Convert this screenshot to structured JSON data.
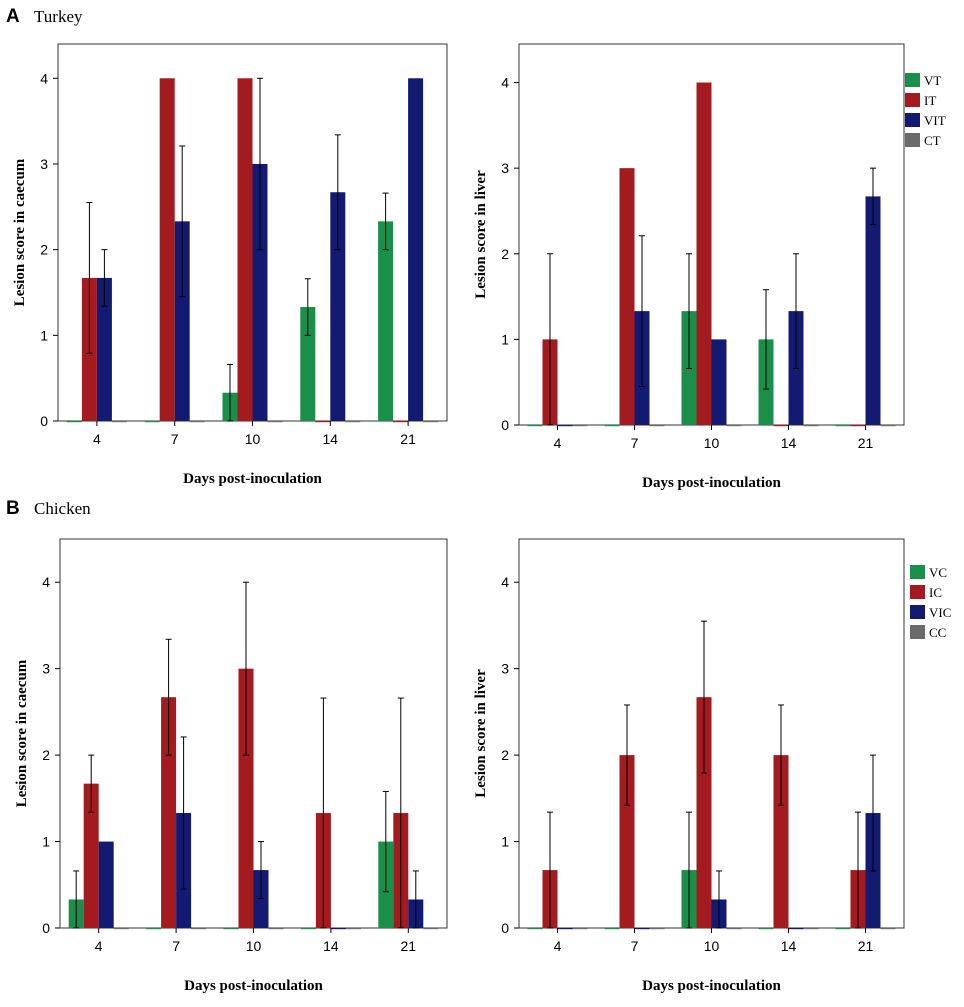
{
  "colors": {
    "green": "#1a8f4a",
    "red": "#a31a1f",
    "navy": "#131a72",
    "gray": "#6b6b6b"
  },
  "panels": [
    {
      "letter": "A",
      "title": "Turkey"
    },
    {
      "letter": "B",
      "title": "Chicken"
    }
  ],
  "chart_data": [
    {
      "type": "bar",
      "panel": "A",
      "categories": [
        "4",
        "7",
        "10",
        "14",
        "21"
      ],
      "xlabel": "Days post-inoculation",
      "ylabel": "Lesion score in caecum",
      "ylim": [
        0,
        4.4
      ],
      "yticks": [
        0,
        1,
        2,
        3,
        4
      ],
      "legend": [],
      "series": [
        {
          "name": "VT",
          "color": "green",
          "values": [
            0,
            0,
            0.33,
            1.33,
            2.33
          ],
          "err": [
            0,
            0,
            0.33,
            0.33,
            0.33
          ]
        },
        {
          "name": "IT",
          "color": "red",
          "values": [
            1.67,
            4,
            4,
            0,
            0
          ],
          "err": [
            0.88,
            0,
            0,
            0,
            0
          ]
        },
        {
          "name": "VIT",
          "color": "navy",
          "values": [
            1.67,
            2.33,
            3,
            2.67,
            4
          ],
          "err": [
            0.33,
            0.88,
            1,
            0.67,
            0
          ]
        },
        {
          "name": "CT",
          "color": "gray",
          "values": [
            0,
            0,
            0,
            0,
            0
          ],
          "err": [
            0,
            0,
            0,
            0,
            0
          ]
        }
      ]
    },
    {
      "type": "bar",
      "panel": "A",
      "categories": [
        "4",
        "7",
        "10",
        "14",
        "21"
      ],
      "xlabel": "Days post-inoculation",
      "ylabel": "Lesion score in liver",
      "ylim": [
        0,
        4.45
      ],
      "yticks": [
        0,
        1,
        2,
        3,
        4
      ],
      "legend": [
        "VT",
        "IT",
        "VIT",
        "CT"
      ],
      "series": [
        {
          "name": "VT",
          "color": "green",
          "values": [
            0,
            0,
            1.33,
            1,
            0
          ],
          "err": [
            0,
            0,
            0.67,
            0.58,
            0
          ]
        },
        {
          "name": "IT",
          "color": "red",
          "values": [
            1,
            3,
            4,
            0,
            0
          ],
          "err": [
            1,
            0,
            0,
            0,
            0
          ]
        },
        {
          "name": "VIT",
          "color": "navy",
          "values": [
            0,
            1.33,
            1,
            1.33,
            2.67
          ],
          "err": [
            0,
            0.88,
            0,
            0.67,
            0.33
          ]
        },
        {
          "name": "CT",
          "color": "gray",
          "values": [
            0,
            0,
            0,
            0,
            0
          ],
          "err": [
            0,
            0,
            0,
            0,
            0
          ]
        }
      ]
    },
    {
      "type": "bar",
      "panel": "B",
      "categories": [
        "4",
        "7",
        "10",
        "14",
        "21"
      ],
      "xlabel": "Days post-inoculation",
      "ylabel": "Lesion score in caecum",
      "ylim": [
        0,
        4.5
      ],
      "yticks": [
        0,
        1,
        2,
        3,
        4
      ],
      "legend": [],
      "series": [
        {
          "name": "VC",
          "color": "green",
          "values": [
            0.33,
            0,
            0,
            0,
            1
          ],
          "err": [
            0.33,
            0,
            0,
            0,
            0.58
          ]
        },
        {
          "name": "IC",
          "color": "red",
          "values": [
            1.67,
            2.67,
            3,
            1.33,
            1.33
          ],
          "err": [
            0.33,
            0.67,
            1,
            1.33,
            1.33
          ]
        },
        {
          "name": "VIC",
          "color": "navy",
          "values": [
            1,
            1.33,
            0.67,
            0,
            0.33
          ],
          "err": [
            0,
            0.88,
            0.33,
            0,
            0.33
          ]
        },
        {
          "name": "CC",
          "color": "gray",
          "values": [
            0,
            0,
            0,
            0,
            0
          ],
          "err": [
            0,
            0,
            0,
            0,
            0
          ]
        }
      ]
    },
    {
      "type": "bar",
      "panel": "B",
      "categories": [
        "4",
        "7",
        "10",
        "14",
        "21"
      ],
      "xlabel": "Days post-inoculation",
      "ylabel": "Lesion score in liver",
      "ylim": [
        0,
        4.5
      ],
      "yticks": [
        0,
        1,
        2,
        3,
        4
      ],
      "legend": [
        "VC",
        "IC",
        "VIC",
        "CC"
      ],
      "series": [
        {
          "name": "VC",
          "color": "green",
          "values": [
            0,
            0,
            0.67,
            0,
            0
          ],
          "err": [
            0,
            0,
            0.67,
            0,
            0
          ]
        },
        {
          "name": "IC",
          "color": "red",
          "values": [
            0.67,
            2,
            2.67,
            2,
            0.67
          ],
          "err": [
            0.67,
            0.58,
            0.88,
            0.58,
            0.67
          ]
        },
        {
          "name": "VIC",
          "color": "navy",
          "values": [
            0,
            0,
            0.33,
            0,
            1.33
          ],
          "err": [
            0,
            0,
            0.33,
            0,
            0.67
          ]
        },
        {
          "name": "CC",
          "color": "gray",
          "values": [
            0,
            0,
            0,
            0,
            0
          ],
          "err": [
            0,
            0,
            0,
            0,
            0
          ]
        }
      ]
    }
  ]
}
